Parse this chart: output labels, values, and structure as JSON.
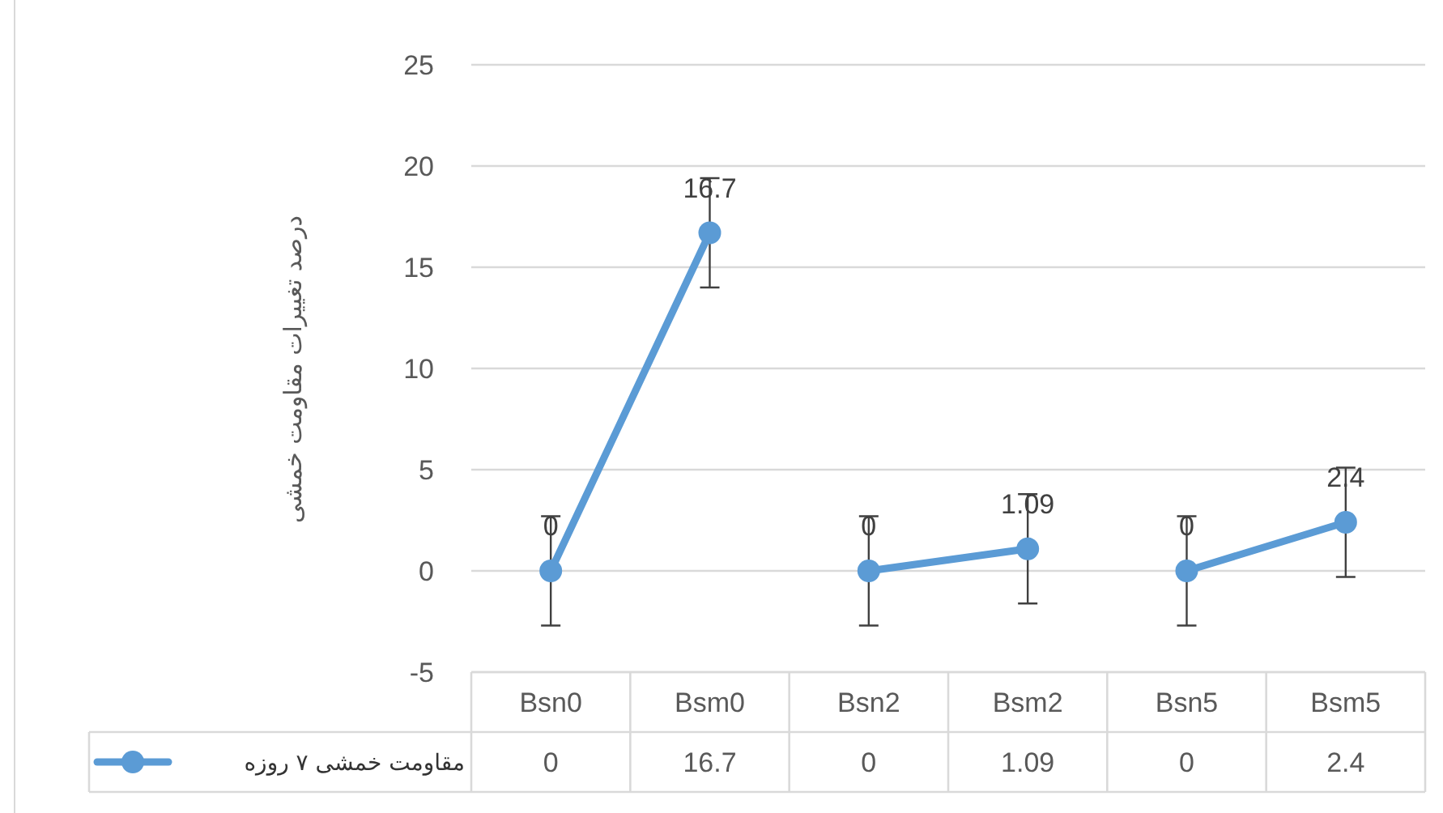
{
  "chart_data": {
    "type": "line",
    "ylabel": "درصد تغییرات مقاومت خمشی",
    "categories": [
      "Bsn0",
      "Bsm0",
      "Bsn2",
      "Bsm2",
      "Bsn5",
      "Bsm5"
    ],
    "series": [
      {
        "name": "مقاومت خمشی ۷ روزه",
        "color": "#5b9bd5",
        "values": [
          0,
          16.7,
          null,
          null,
          null,
          null
        ],
        "errors": [
          2.7,
          2.7,
          null,
          null,
          null,
          null
        ]
      },
      {
        "color": "#5b9bd5",
        "values": [
          null,
          null,
          0,
          1.09,
          null,
          null
        ],
        "errors": [
          null,
          null,
          2.7,
          2.7,
          null,
          null
        ]
      },
      {
        "color": "#5b9bd5",
        "values": [
          null,
          null,
          null,
          null,
          0,
          2.4
        ],
        "errors": [
          null,
          null,
          null,
          null,
          2.7,
          2.7
        ]
      }
    ],
    "annotations": [
      "0",
      "16.7",
      "0",
      "1.09",
      "0",
      "2.4"
    ],
    "ylim": [
      -5,
      25
    ],
    "yticks": [
      -5,
      0,
      5,
      10,
      15,
      20,
      25
    ],
    "grid": "y",
    "marker": "circle",
    "line_style": "solid",
    "data_labels": true
  }
}
